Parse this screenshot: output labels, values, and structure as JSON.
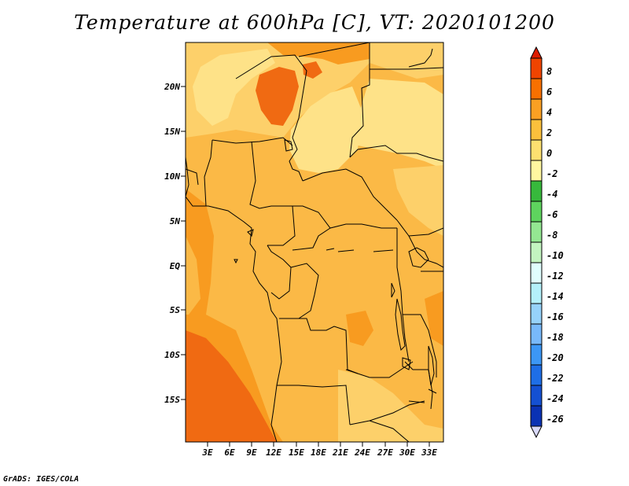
{
  "title": "Temperature at 600hPa [C], VT: 2020101200",
  "credit": "GrADS: IGES/COLA",
  "map": {
    "lat_labels": [
      "20N",
      "15N",
      "10N",
      "5N",
      "EQ",
      "5S",
      "10S",
      "15S"
    ],
    "lon_labels": [
      "3E",
      "6E",
      "9E",
      "12E",
      "15E",
      "18E",
      "21E",
      "24E",
      "27E",
      "30E",
      "33E"
    ]
  },
  "colorbar": {
    "labels": [
      "8",
      "6",
      "4",
      "2",
      "0",
      "-2",
      "-4",
      "-6",
      "-8",
      "-10",
      "-12",
      "-14",
      "-16",
      "-18",
      "-20",
      "-22",
      "-24",
      "-26"
    ],
    "colors": [
      "#dd1c00",
      "#ef4400",
      "#f87000",
      "#faa023",
      "#fbc03c",
      "#fde070",
      "#fff7a0",
      "#37b93c",
      "#5ed45e",
      "#94e792",
      "#c3f4c0",
      "#e0fefe",
      "#b4f0fa",
      "#96d2fa",
      "#78b9fa",
      "#3c97f5",
      "#1e6ee6",
      "#1450d2",
      "#0a32b4",
      "#0a1482"
    ]
  },
  "colors": {
    "c1": "#fee288",
    "c2": "#fdd06a",
    "c3": "#fbb946",
    "c4": "#f89b20",
    "c5": "#f06a12",
    "c6": "#e64a0a"
  }
}
